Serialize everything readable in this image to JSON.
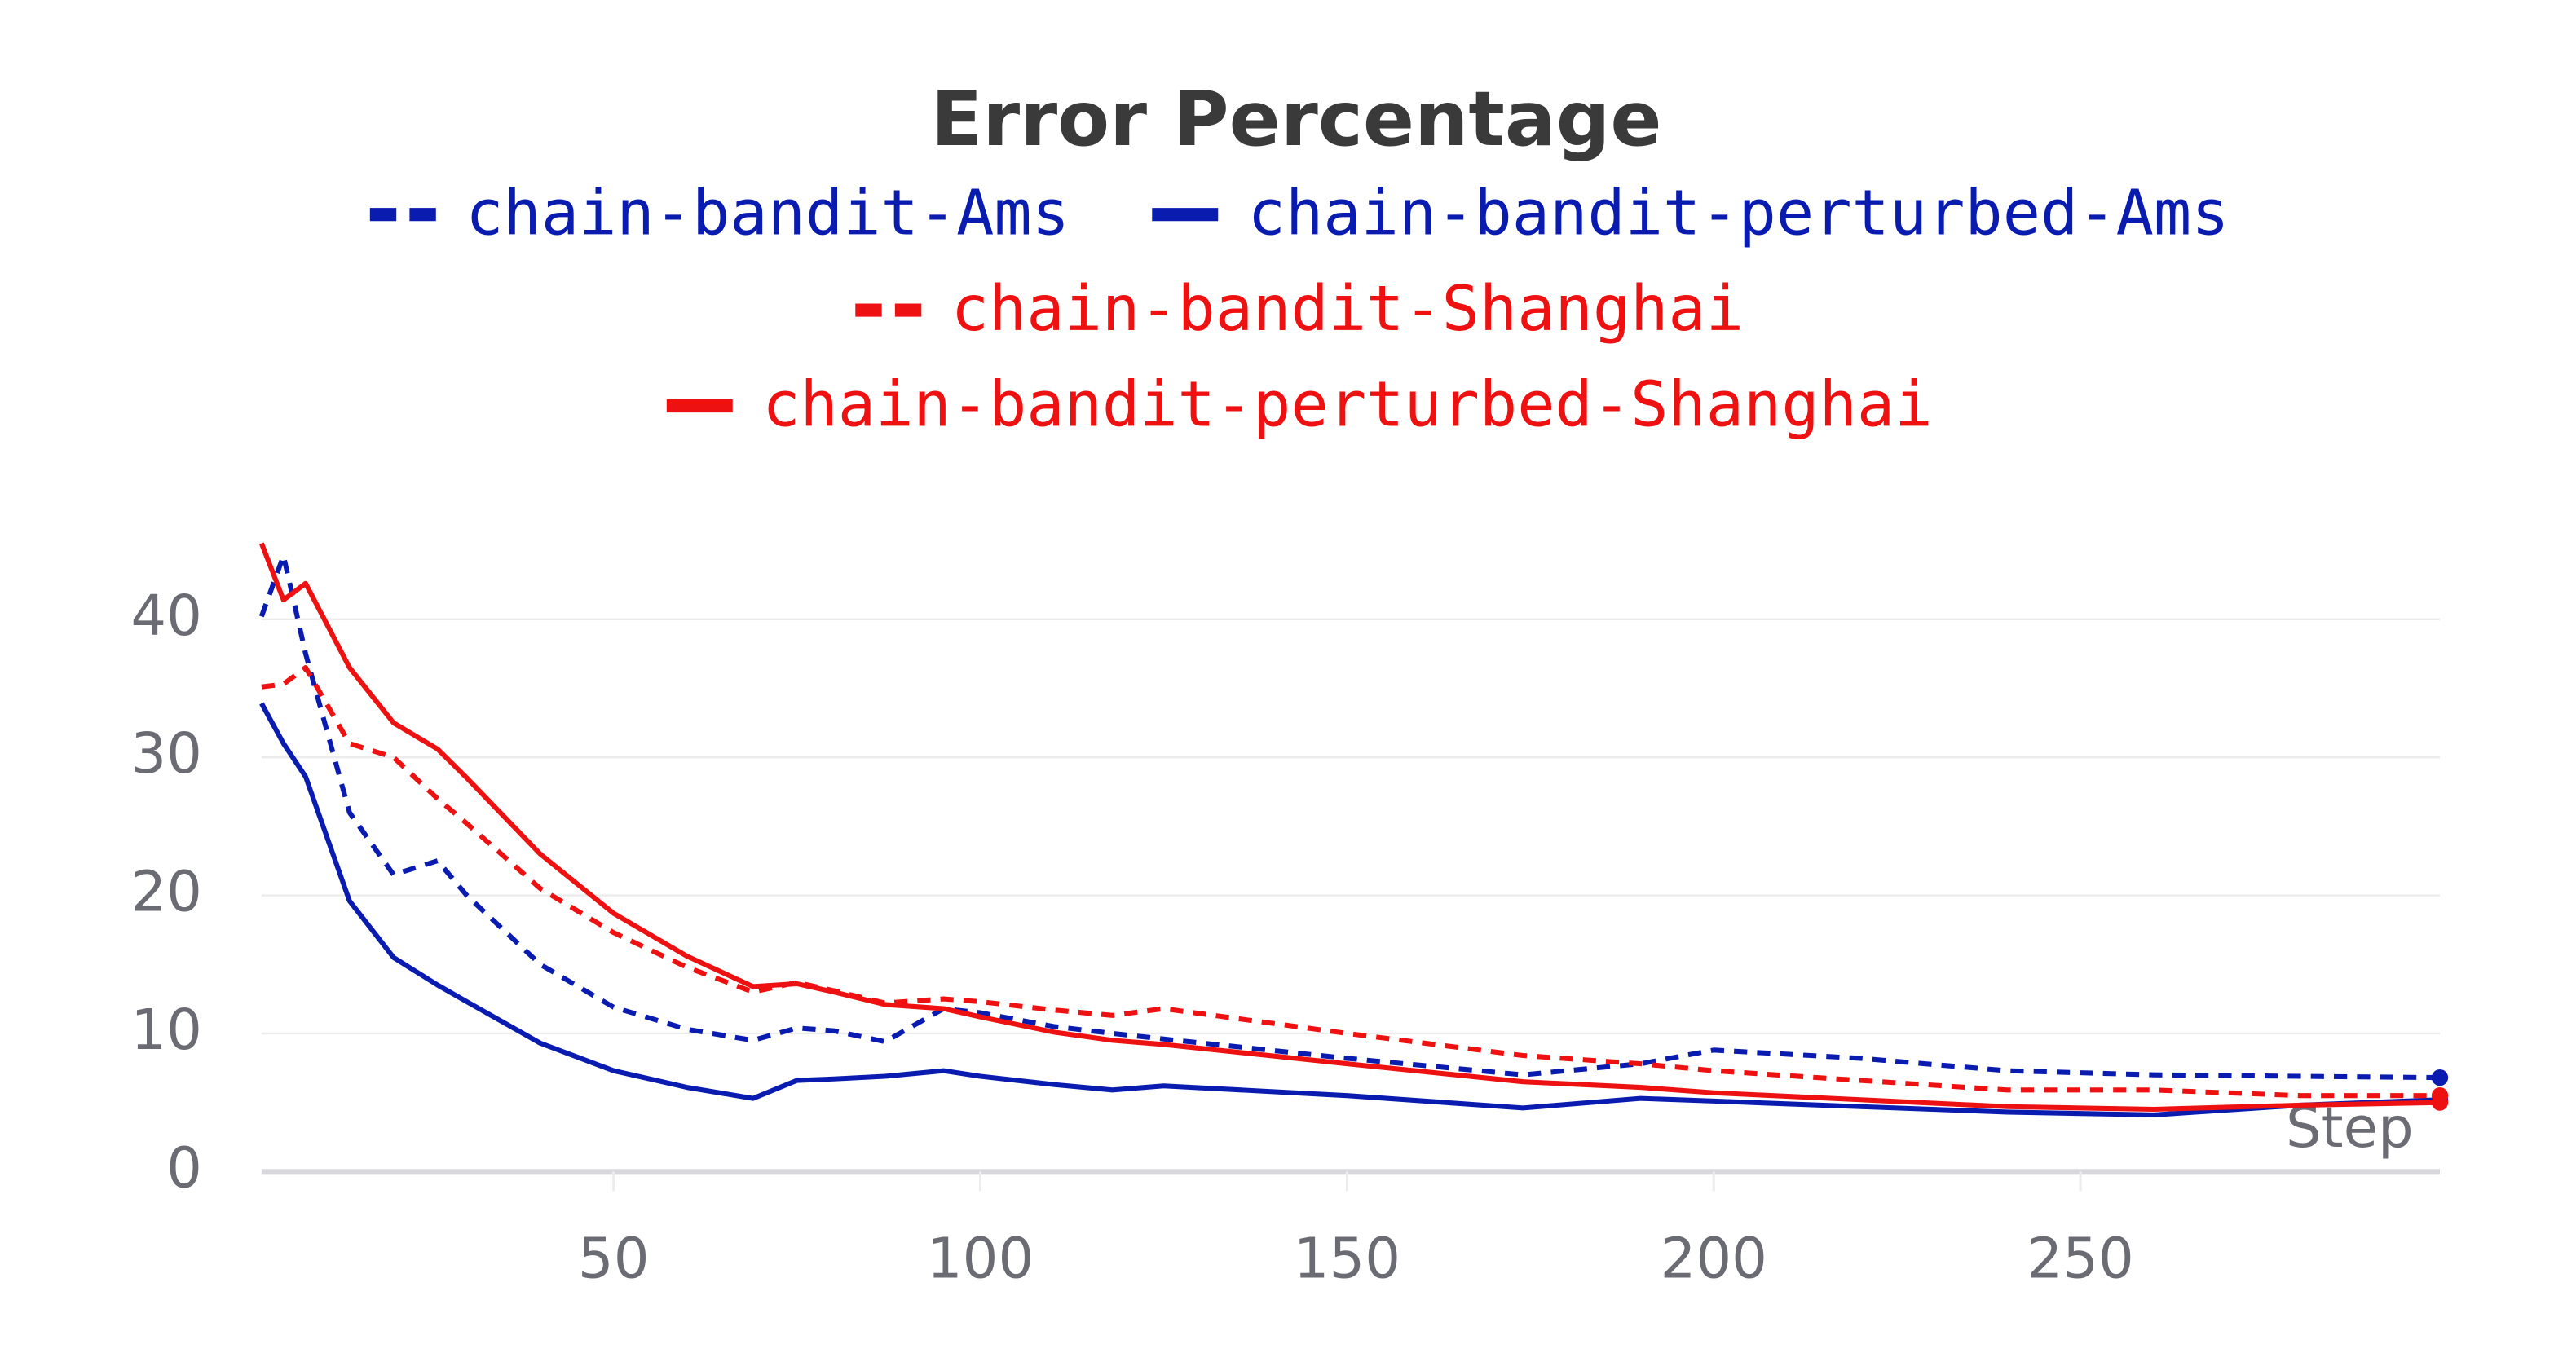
{
  "chart_data": {
    "type": "line",
    "title": "Error Percentage",
    "xlabel": "Step",
    "x": [
      2,
      5,
      8,
      14,
      20,
      26,
      30,
      40,
      50,
      60,
      69,
      75,
      80,
      87,
      95,
      100,
      110,
      118,
      125,
      150,
      174,
      190,
      200,
      220,
      240,
      260,
      280,
      299
    ],
    "series": [
      {
        "name": "chain-bandit-Ams",
        "color": "#0a1bb0",
        "style": "dashed",
        "values": [
          40.2,
          44.6,
          37.5,
          26,
          21.5,
          22.5,
          20,
          15,
          11.9,
          10.3,
          9.5,
          10.4,
          10.2,
          9.4,
          11.8,
          11.5,
          10.5,
          10,
          9.6,
          8.2,
          7,
          7.8,
          8.8,
          8.2,
          7.3,
          7,
          6.9,
          6.8
        ]
      },
      {
        "name": "chain-bandit-perturbed-Ams",
        "color": "#0a1bb0",
        "style": "solid",
        "values": [
          33.9,
          31,
          28.6,
          19.6,
          15.5,
          13.5,
          12.3,
          9.3,
          7.3,
          6.1,
          5.3,
          6.6,
          6.7,
          6.9,
          7.3,
          6.9,
          6.3,
          5.9,
          6.2,
          5.5,
          4.6,
          5.3,
          5.1,
          4.7,
          4.3,
          4.1,
          4.8,
          5.2
        ]
      },
      {
        "name": "chain-bandit-Shanghai",
        "color": "#ee1111",
        "style": "dashed",
        "values": [
          35.1,
          35.3,
          36.5,
          31,
          30,
          27,
          25.2,
          20.5,
          17.3,
          14.8,
          13,
          13.7,
          13.1,
          12.2,
          12.5,
          12.3,
          11.7,
          11.3,
          11.8,
          10,
          8.4,
          7.8,
          7.3,
          6.6,
          5.9,
          5.9,
          5.5,
          5.5
        ]
      },
      {
        "name": "chain-bandit-perturbed-Shanghai",
        "color": "#ee1111",
        "style": "solid",
        "values": [
          45.5,
          41.4,
          42.6,
          36.5,
          32.5,
          30.6,
          28.5,
          23,
          18.7,
          15.6,
          13.4,
          13.6,
          13,
          12.1,
          11.8,
          11.2,
          10.1,
          9.5,
          9.2,
          7.8,
          6.5,
          6.1,
          5.7,
          5.2,
          4.7,
          4.5,
          4.8,
          5
        ]
      }
    ],
    "xlim": [
      2,
      299
    ],
    "ylim": [
      0,
      49
    ],
    "xticks": [
      50,
      100,
      150,
      200,
      250
    ],
    "yticks": [
      0,
      10,
      20,
      30,
      40
    ],
    "grid": true
  }
}
